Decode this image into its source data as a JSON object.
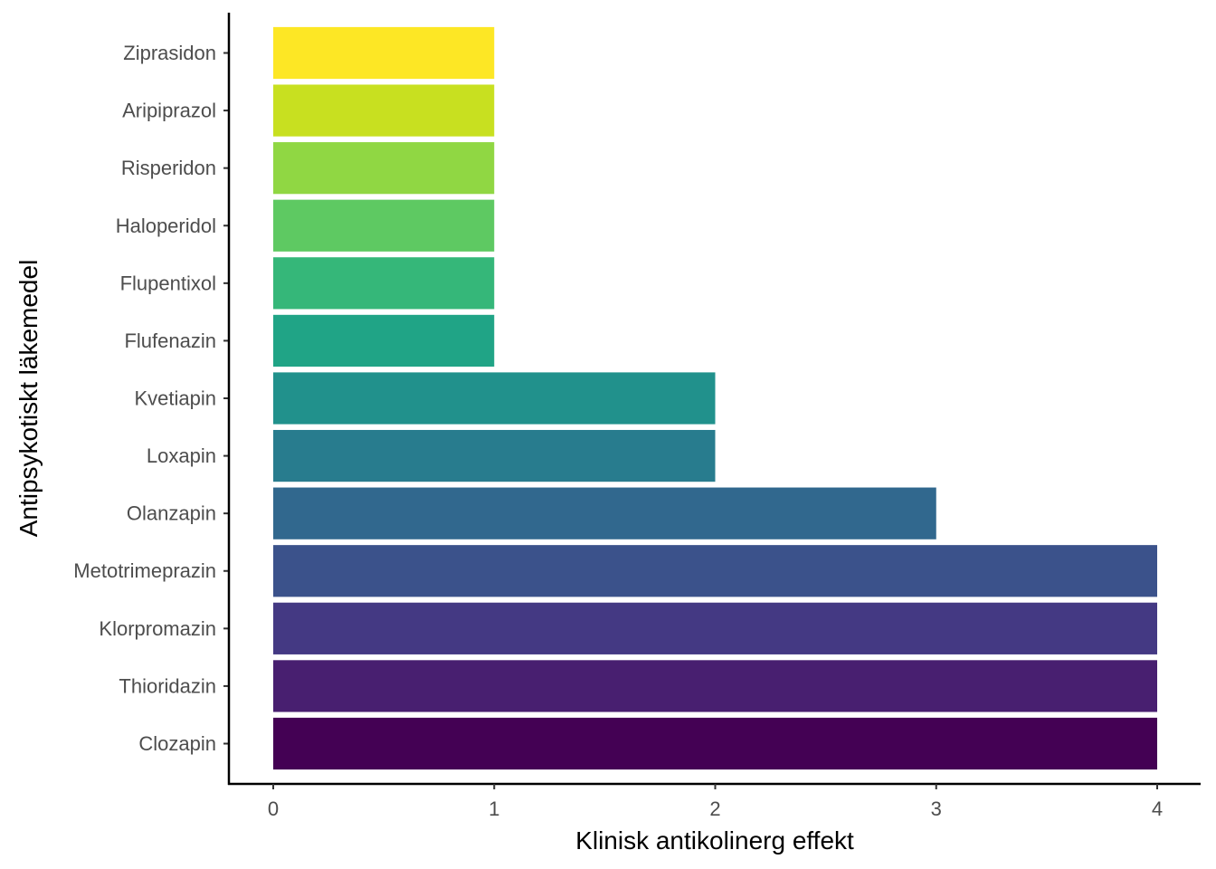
{
  "chart_data": {
    "type": "bar",
    "orientation": "horizontal",
    "title": "",
    "xlabel": "Klinisk antikolinerg effekt",
    "ylabel": "Antipsykotiskt läkemedel",
    "xlim": [
      0,
      4
    ],
    "xticks": [
      0,
      1,
      2,
      3,
      4
    ],
    "grid": false,
    "legend": "none",
    "categories": [
      "Ziprasidon",
      "Aripiprazol",
      "Risperidon",
      "Haloperidol",
      "Flupentixol",
      "Flufenazin",
      "Kvetiapin",
      "Loxapin",
      "Olanzapin",
      "Metotrimeprazin",
      "Klorpromazin",
      "Thioridazin",
      "Clozapin"
    ],
    "values": [
      1,
      1,
      1,
      1,
      1,
      1,
      2,
      2,
      3,
      4,
      4,
      4,
      4
    ],
    "colors": [
      "#fde725",
      "#c8e020",
      "#90d743",
      "#5ec962",
      "#35b779",
      "#20a486",
      "#21918c",
      "#287c8e",
      "#31688e",
      "#3b528b",
      "#443983",
      "#481f70",
      "#440154"
    ]
  }
}
